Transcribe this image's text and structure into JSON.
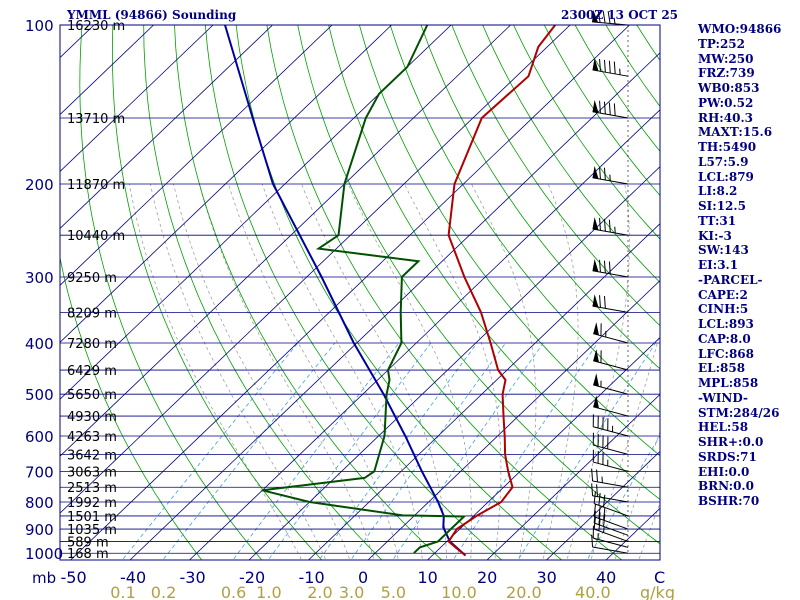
{
  "header": {
    "station": "YMML (94866) Sounding",
    "time": "2300Z 13 OCT 25"
  },
  "indices": [
    "WMO:94866",
    "TP:252",
    "MW:250",
    "FRZ:739",
    "WB0:853",
    "PW:0.52",
    "RH:40.3",
    "MAXT:15.6",
    "TH:5490",
    "L57:5.9",
    "LCL:879",
    "LI:8.2",
    "SI:12.5",
    "TT:31",
    "KI:-3",
    "SW:143",
    "EI:3.1",
    "-PARCEL-",
    "CAPE:2",
    "CINH:5",
    "LCL:893",
    "CAP:8.0",
    "LFC:868",
    "EL:858",
    "MPL:858",
    "-WIND-",
    "STM:284/26",
    "HEL:58",
    "SHR+:0.0",
    "SRDS:71",
    "EHI:0.0",
    "BRN:0.0",
    "BSHR:70"
  ],
  "colors": {
    "isobar": "#000080",
    "isotherm": "#000080",
    "dry_adiabat": "#00a000",
    "moist_adiabat": "#a0a0a0",
    "mixing_ratio": "#40a0e0",
    "temperature": "#b00000",
    "dewpoint": "#005000",
    "parcel": "#0000a0",
    "axis_text": "#000080",
    "mixing_text": "#b0a040",
    "wind_barb": "#000000"
  },
  "chart_data": {
    "type": "skew-t log-p",
    "xlabel": "mb",
    "pressure_labels": [
      "100",
      "200",
      "300",
      "400",
      "500",
      "600",
      "700",
      "800",
      "900",
      "1000"
    ],
    "pressure_ticks": [
      100,
      200,
      300,
      400,
      500,
      600,
      700,
      800,
      900,
      1000
    ],
    "temperature_labels": [
      "-50",
      "-40",
      "-30",
      "-20",
      "-10",
      "0",
      "10",
      "20",
      "30",
      "40",
      "C"
    ],
    "temperature_ticks": [
      -50,
      -40,
      -30,
      -20,
      -10,
      0,
      10,
      20,
      30,
      40
    ],
    "mixing_ratio_labels": [
      "0.1",
      "0.2",
      "0.6",
      "1.0",
      "2.0",
      "3.0",
      "5.0",
      "10.0",
      "20.0",
      "40.0",
      "g/kg"
    ],
    "mixing_ratio_values": [
      0.1,
      0.2,
      0.6,
      1.0,
      2.0,
      3.0,
      5.0,
      10.0,
      20.0,
      40.0
    ],
    "heights": [
      {
        "p": 100,
        "label": "16230 m"
      },
      {
        "p": 150,
        "label": "13710 m"
      },
      {
        "p": 200,
        "label": "11870 m"
      },
      {
        "p": 250,
        "label": "10440 m"
      },
      {
        "p": 300,
        "label": "9250 m"
      },
      {
        "p": 350,
        "label": "8209 m"
      },
      {
        "p": 400,
        "label": "7280 m"
      },
      {
        "p": 450,
        "label": "6429 m"
      },
      {
        "p": 500,
        "label": "5650 m"
      },
      {
        "p": 550,
        "label": "4930 m"
      },
      {
        "p": 600,
        "label": "4263 m"
      },
      {
        "p": 650,
        "label": "3642 m"
      },
      {
        "p": 700,
        "label": "3063 m"
      },
      {
        "p": 750,
        "label": "2513 m"
      },
      {
        "p": 800,
        "label": "1992 m"
      },
      {
        "p": 850,
        "label": "1501 m"
      },
      {
        "p": 900,
        "label": "1035 m"
      },
      {
        "p": 950,
        "label": "589 m"
      },
      {
        "p": 1000,
        "label": "168 m"
      }
    ],
    "temperature_profile": [
      {
        "p": 1010,
        "t": 15.6
      },
      {
        "p": 975,
        "t": 12.5
      },
      {
        "p": 950,
        "t": 10.3
      },
      {
        "p": 900,
        "t": 9.5
      },
      {
        "p": 850,
        "t": 10.5
      },
      {
        "p": 800,
        "t": 12.2
      },
      {
        "p": 750,
        "t": 11.5
      },
      {
        "p": 700,
        "t": 8.0
      },
      {
        "p": 650,
        "t": 4.5
      },
      {
        "p": 600,
        "t": 1.2
      },
      {
        "p": 550,
        "t": -2.5
      },
      {
        "p": 500,
        "t": -6.5
      },
      {
        "p": 470,
        "t": -8.5
      },
      {
        "p": 450,
        "t": -11.5
      },
      {
        "p": 400,
        "t": -17.5
      },
      {
        "p": 350,
        "t": -24.5
      },
      {
        "p": 300,
        "t": -33.5
      },
      {
        "p": 250,
        "t": -43.5
      },
      {
        "p": 200,
        "t": -51.5
      },
      {
        "p": 150,
        "t": -58.5
      },
      {
        "p": 125,
        "t": -58.0
      },
      {
        "p": 110,
        "t": -61.5
      },
      {
        "p": 100,
        "t": -62.5
      }
    ],
    "dewpoint_profile": [
      {
        "p": 1000,
        "t": 6.5
      },
      {
        "p": 975,
        "t": 6.5
      },
      {
        "p": 950,
        "t": 8.5
      },
      {
        "p": 900,
        "t": 8.5
      },
      {
        "p": 852,
        "t": 8.5
      },
      {
        "p": 848,
        "t": -2.0
      },
      {
        "p": 800,
        "t": -20.0
      },
      {
        "p": 760,
        "t": -30.0
      },
      {
        "p": 720,
        "t": -15.0
      },
      {
        "p": 700,
        "t": -14.5
      },
      {
        "p": 600,
        "t": -19.0
      },
      {
        "p": 500,
        "t": -26.0
      },
      {
        "p": 470,
        "t": -28.0
      },
      {
        "p": 450,
        "t": -30.0
      },
      {
        "p": 400,
        "t": -32.5
      },
      {
        "p": 350,
        "t": -38.0
      },
      {
        "p": 300,
        "t": -44.0
      },
      {
        "p": 280,
        "t": -44.0
      },
      {
        "p": 265,
        "t": -63.0
      },
      {
        "p": 250,
        "t": -62.0
      },
      {
        "p": 200,
        "t": -70.0
      },
      {
        "p": 150,
        "t": -78.0
      },
      {
        "p": 135,
        "t": -80.0
      },
      {
        "p": 120,
        "t": -80.0
      },
      {
        "p": 100,
        "t": -84.0
      }
    ],
    "parcel_profile": [
      {
        "p": 1010,
        "t": 15.6
      },
      {
        "p": 950,
        "t": 10.5
      },
      {
        "p": 893,
        "t": 6.9
      },
      {
        "p": 850,
        "t": 5.0
      },
      {
        "p": 800,
        "t": 1.6
      },
      {
        "p": 700,
        "t": -6.5
      },
      {
        "p": 600,
        "t": -15.5
      },
      {
        "p": 500,
        "t": -26.5
      },
      {
        "p": 400,
        "t": -40.5
      },
      {
        "p": 300,
        "t": -57.5
      },
      {
        "p": 200,
        "t": -82.0
      },
      {
        "p": 150,
        "t": -97.0
      },
      {
        "p": 100,
        "t": -118.0
      }
    ],
    "winds": [
      {
        "p": 1000,
        "dir": 280,
        "spd": 10
      },
      {
        "p": 975,
        "dir": 285,
        "spd": 15
      },
      {
        "p": 950,
        "dir": 290,
        "spd": 25
      },
      {
        "p": 925,
        "dir": 290,
        "spd": 30
      },
      {
        "p": 900,
        "dir": 290,
        "spd": 30
      },
      {
        "p": 850,
        "dir": 290,
        "spd": 30
      },
      {
        "p": 800,
        "dir": 280,
        "spd": 20
      },
      {
        "p": 750,
        "dir": 280,
        "spd": 25
      },
      {
        "p": 700,
        "dir": 285,
        "spd": 35
      },
      {
        "p": 650,
        "dir": 285,
        "spd": 40
      },
      {
        "p": 600,
        "dir": 285,
        "spd": 45
      },
      {
        "p": 550,
        "dir": 285,
        "spd": 50
      },
      {
        "p": 500,
        "dir": 285,
        "spd": 55
      },
      {
        "p": 450,
        "dir": 285,
        "spd": 60
      },
      {
        "p": 400,
        "dir": 285,
        "spd": 65
      },
      {
        "p": 350,
        "dir": 280,
        "spd": 70
      },
      {
        "p": 300,
        "dir": 280,
        "spd": 80
      },
      {
        "p": 250,
        "dir": 280,
        "spd": 85
      },
      {
        "p": 200,
        "dir": 280,
        "spd": 75
      },
      {
        "p": 150,
        "dir": 280,
        "spd": 90
      },
      {
        "p": 125,
        "dir": 280,
        "spd": 95
      },
      {
        "p": 100,
        "dir": 275,
        "spd": 85
      }
    ]
  }
}
